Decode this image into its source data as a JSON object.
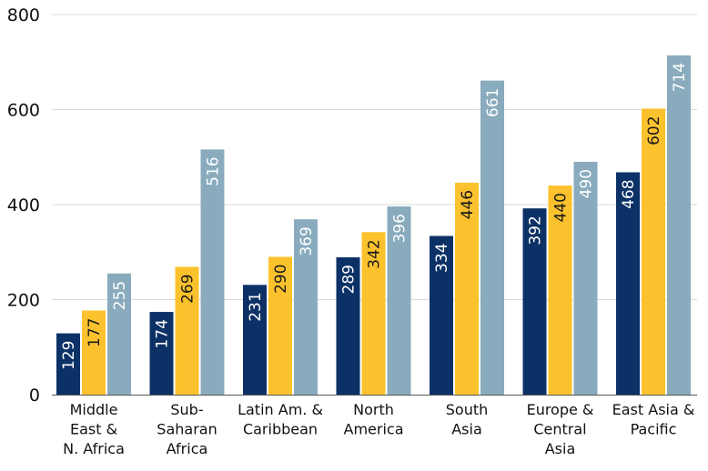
{
  "chart_data": {
    "type": "bar",
    "categories": [
      [
        "Middle",
        "East &",
        "N. Africa"
      ],
      [
        "Sub-",
        "Saharan",
        "Africa"
      ],
      [
        "Latin Am. &",
        "Caribbean"
      ],
      [
        "North",
        "America"
      ],
      [
        "South",
        "Asia"
      ],
      [
        "Europe &",
        "Central",
        "Asia"
      ],
      [
        "East Asia &",
        "Pacific"
      ]
    ],
    "series": [
      {
        "color": "#0c3166",
        "label_color": "#ffffff",
        "values": [
          129,
          174,
          231,
          289,
          334,
          392,
          468
        ]
      },
      {
        "color": "#fcc22d",
        "label_color": "#1a1a1a",
        "values": [
          177,
          269,
          290,
          342,
          446,
          440,
          602
        ]
      },
      {
        "color": "#89abbd",
        "label_color": "#ffffff",
        "values": [
          255,
          516,
          369,
          396,
          661,
          490,
          714
        ]
      }
    ],
    "ylim": [
      0,
      800
    ],
    "yticks": [
      0,
      200,
      400,
      600,
      800
    ],
    "grid": true
  }
}
